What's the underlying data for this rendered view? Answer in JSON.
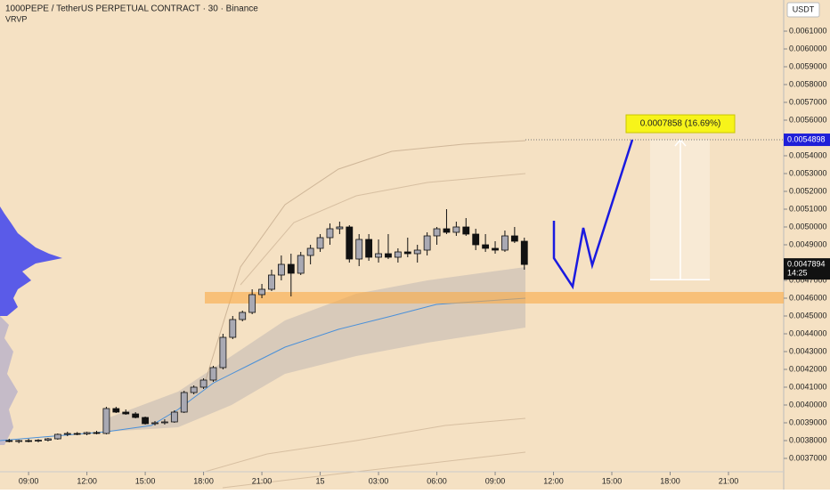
{
  "chart_data": {
    "type": "candlestick",
    "title": "1000PEPE / TetherUS PERPETUAL CONTRACT · 30 · Binance",
    "indicator": "VRVP",
    "currency": "USDT",
    "up_color": "#a9a9b3",
    "down_color": "#111111",
    "xlim": [
      -1.47,
      38.84
    ],
    "xticks": [
      {
        "value": 0,
        "label": "09:00"
      },
      {
        "value": 3,
        "label": "12:00"
      },
      {
        "value": 6,
        "label": "15:00"
      },
      {
        "value": 9,
        "label": "18:00"
      },
      {
        "value": 12,
        "label": "21:00"
      },
      {
        "value": 15,
        "label": "15"
      },
      {
        "value": 18,
        "label": "03:00"
      },
      {
        "value": 21,
        "label": "06:00"
      },
      {
        "value": 24,
        "label": "09:00"
      },
      {
        "value": 27,
        "label": "12:00"
      },
      {
        "value": 30,
        "label": "15:00"
      },
      {
        "value": 33,
        "label": "18:00"
      },
      {
        "value": 36,
        "label": "21:00"
      }
    ],
    "ylim": [
      0.003625,
      0.006275
    ],
    "yticks": [
      {
        "value": 0.0037,
        "label": "0.0037000"
      },
      {
        "value": 0.0038,
        "label": "0.0038000"
      },
      {
        "value": 0.0039,
        "label": "0.0039000"
      },
      {
        "value": 0.004,
        "label": "0.0040000"
      },
      {
        "value": 0.0041,
        "label": "0.0041000"
      },
      {
        "value": 0.0042,
        "label": "0.0042000"
      },
      {
        "value": 0.0043,
        "label": "0.0043000"
      },
      {
        "value": 0.0044,
        "label": "0.0044000"
      },
      {
        "value": 0.0045,
        "label": "0.0045000"
      },
      {
        "value": 0.0046,
        "label": "0.0046000"
      },
      {
        "value": 0.0047,
        "label": "0.0047000"
      },
      {
        "value": 0.0048,
        "label": "0.0048000"
      },
      {
        "value": 0.0049,
        "label": "0.0049000"
      },
      {
        "value": 0.005,
        "label": "0.0050000"
      },
      {
        "value": 0.0051,
        "label": "0.0051000"
      },
      {
        "value": 0.0052,
        "label": "0.0052000"
      },
      {
        "value": 0.0053,
        "label": "0.0053000"
      },
      {
        "value": 0.0054,
        "label": "0.0054000"
      },
      {
        "value": 0.0055,
        "label": "0.0055000"
      },
      {
        "value": 0.0056,
        "label": "0.0056000"
      },
      {
        "value": 0.0057,
        "label": "0.0057000"
      },
      {
        "value": 0.0058,
        "label": "0.0058000"
      },
      {
        "value": 0.0059,
        "label": "0.0059000"
      },
      {
        "value": 0.006,
        "label": "0.0060000"
      },
      {
        "value": 0.0061,
        "label": "0.0061000"
      }
    ],
    "x": [
      -1,
      -0.5,
      0,
      0.5,
      1,
      1.5,
      2,
      2.5,
      3,
      3.5,
      4,
      4.5,
      5,
      5.5,
      6,
      6.5,
      7,
      7.5,
      8,
      8.5,
      9,
      9.5,
      10,
      10.5,
      11,
      11.5,
      12,
      12.5,
      13,
      13.5,
      14,
      14.5,
      15,
      15.5,
      16,
      16.5,
      17,
      17.5,
      18,
      18.5,
      19,
      19.5,
      20,
      20.5,
      21,
      21.5,
      22,
      22.5,
      23,
      23.5,
      24,
      24.5,
      25,
      25.5
    ],
    "open": [
      0.0038,
      0.003795,
      0.0038,
      0.003798,
      0.003802,
      0.00381,
      0.003835,
      0.00384,
      0.003838,
      0.003845,
      0.00384,
      0.00398,
      0.00396,
      0.00395,
      0.00393,
      0.003895,
      0.0039,
      0.003905,
      0.00396,
      0.00407,
      0.0041,
      0.00414,
      0.00421,
      0.00438,
      0.00448,
      0.00452,
      0.00462,
      0.00465,
      0.00473,
      0.00479,
      0.00474,
      0.00484,
      0.00488,
      0.00494,
      0.00499,
      0.005,
      0.00482,
      0.00493,
      0.00483,
      0.00485,
      0.00483,
      0.00486,
      0.00485,
      0.00487,
      0.00495,
      0.00499,
      0.00497,
      0.005,
      0.00496,
      0.0049,
      0.00488,
      0.00487,
      0.00495,
      0.00492
    ],
    "high": [
      0.00381,
      0.003805,
      0.00381,
      0.003808,
      0.003815,
      0.00384,
      0.00385,
      0.003848,
      0.00385,
      0.003855,
      0.00399,
      0.00399,
      0.003975,
      0.00396,
      0.003935,
      0.00391,
      0.00392,
      0.00397,
      0.00408,
      0.00411,
      0.00415,
      0.00422,
      0.0044,
      0.0045,
      0.00453,
      0.00465,
      0.00468,
      0.00476,
      0.00484,
      0.00485,
      0.00486,
      0.0049,
      0.00496,
      0.00502,
      0.00503,
      0.00501,
      0.00496,
      0.00496,
      0.00493,
      0.00496,
      0.00488,
      0.00494,
      0.0049,
      0.00497,
      0.005,
      0.0051,
      0.00503,
      0.00505,
      0.00499,
      0.00496,
      0.00492,
      0.00498,
      0.005,
      0.00494
    ],
    "low": [
      0.00379,
      0.003785,
      0.00379,
      0.00379,
      0.003795,
      0.003805,
      0.003825,
      0.00383,
      0.00383,
      0.003835,
      0.003835,
      0.003955,
      0.003945,
      0.003925,
      0.00389,
      0.003885,
      0.00389,
      0.0039,
      0.003955,
      0.00406,
      0.00409,
      0.00413,
      0.0042,
      0.00437,
      0.00447,
      0.00451,
      0.0046,
      0.00464,
      0.0047,
      0.00461,
      0.00473,
      0.00479,
      0.00486,
      0.0049,
      0.00496,
      0.0048,
      0.00478,
      0.00481,
      0.0048,
      0.00482,
      0.0048,
      0.00483,
      0.0048,
      0.00484,
      0.0049,
      0.00496,
      0.00495,
      0.00495,
      0.00487,
      0.00486,
      0.00485,
      0.00486,
      0.00491,
      0.00476
    ],
    "close": [
      0.003795,
      0.0038,
      0.003798,
      0.003802,
      0.00381,
      0.003835,
      0.00384,
      0.003838,
      0.003845,
      0.00384,
      0.00398,
      0.00396,
      0.00395,
      0.00393,
      0.003895,
      0.0039,
      0.003905,
      0.00396,
      0.00407,
      0.0041,
      0.00414,
      0.00421,
      0.00438,
      0.00448,
      0.00452,
      0.00462,
      0.00465,
      0.00473,
      0.00479,
      0.00474,
      0.00484,
      0.00488,
      0.00494,
      0.00499,
      0.005,
      0.00482,
      0.00493,
      0.00483,
      0.00485,
      0.00483,
      0.00486,
      0.00485,
      0.00487,
      0.00495,
      0.00499,
      0.00497,
      0.005,
      0.00496,
      0.0049,
      0.00488,
      0.00487,
      0.00495,
      0.00492,
      0.0047894
    ],
    "zone": [
      0.00457,
      0.004635
    ],
    "measure_from": 0.004704,
    "target_price": {
      "value": 0.0054898,
      "label": "0.0054898"
    },
    "annotation": "0.0007858 (16.69%)",
    "current_price": {
      "value": 0.0047894,
      "label": "0.0047894"
    },
    "countdown": "14:25"
  }
}
